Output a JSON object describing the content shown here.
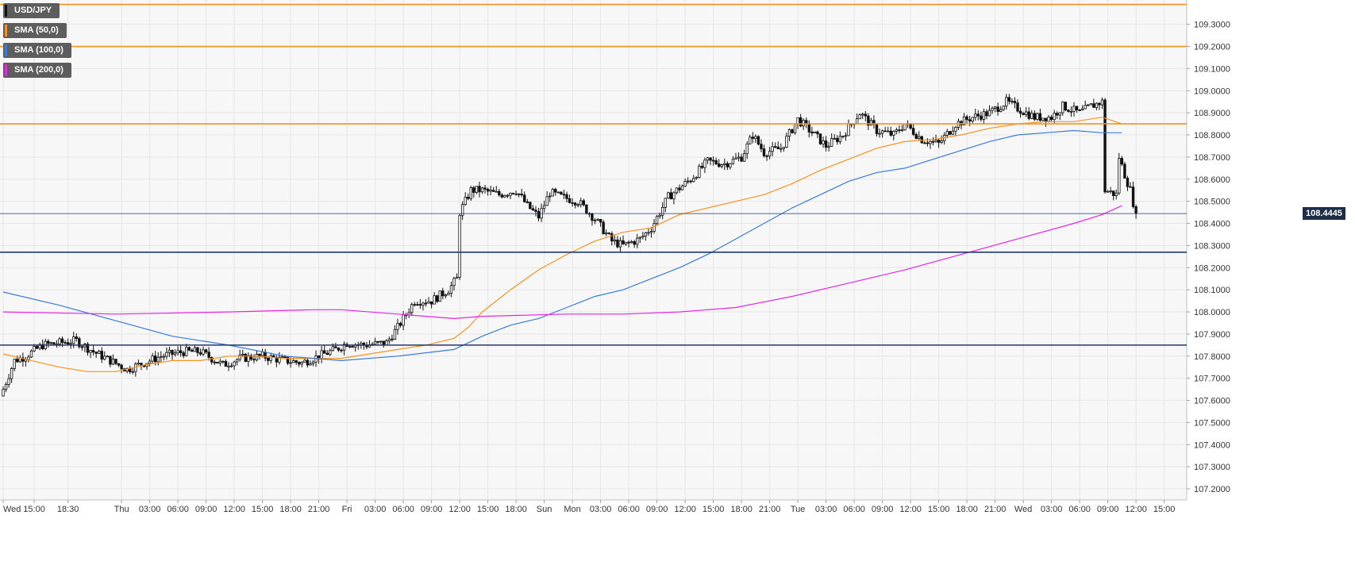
{
  "chart_data": {
    "type": "candlestick",
    "title": "USD/JPY",
    "grid": true,
    "legend_placement": "top-left",
    "ylim": [
      107.15,
      109.41
    ],
    "y_ticks": [
      "109.3000",
      "109.2000",
      "109.1000",
      "109.0000",
      "108.9000",
      "108.8000",
      "108.7000",
      "108.6000",
      "108.5000",
      "108.4000",
      "108.3000",
      "108.2000",
      "108.1000",
      "108.0000",
      "107.9000",
      "107.8000",
      "107.7000",
      "107.6000",
      "107.5000",
      "107.4000",
      "107.3000",
      "107.2000"
    ],
    "x_ticks": [
      {
        "label": "Wed",
        "bar": 0
      },
      {
        "label": "15:00",
        "bar": 11
      },
      {
        "label": "18:30",
        "bar": 23
      },
      {
        "label": "Thu",
        "bar": 42
      },
      {
        "label": "03:00",
        "bar": 52
      },
      {
        "label": "06:00",
        "bar": 62
      },
      {
        "label": "09:00",
        "bar": 72
      },
      {
        "label": "12:00",
        "bar": 82
      },
      {
        "label": "15:00",
        "bar": 92
      },
      {
        "label": "18:00",
        "bar": 102
      },
      {
        "label": "21:00",
        "bar": 112
      },
      {
        "label": "Fri",
        "bar": 122
      },
      {
        "label": "03:00",
        "bar": 132
      },
      {
        "label": "06:00",
        "bar": 142
      },
      {
        "label": "09:00",
        "bar": 152
      },
      {
        "label": "12:00",
        "bar": 162
      },
      {
        "label": "15:00",
        "bar": 172
      },
      {
        "label": "18:00",
        "bar": 182
      },
      {
        "label": "Sun",
        "bar": 192
      },
      {
        "label": "Mon",
        "bar": 202
      },
      {
        "label": "03:00",
        "bar": 212
      },
      {
        "label": "06:00",
        "bar": 222
      },
      {
        "label": "09:00",
        "bar": 232
      },
      {
        "label": "12:00",
        "bar": 242
      },
      {
        "label": "15:00",
        "bar": 252
      },
      {
        "label": "18:00",
        "bar": 262
      },
      {
        "label": "21:00",
        "bar": 272
      },
      {
        "label": "Tue",
        "bar": 282
      },
      {
        "label": "03:00",
        "bar": 292
      },
      {
        "label": "06:00",
        "bar": 302
      },
      {
        "label": "09:00",
        "bar": 312
      },
      {
        "label": "12:00",
        "bar": 322
      },
      {
        "label": "15:00",
        "bar": 332
      },
      {
        "label": "18:00",
        "bar": 342
      },
      {
        "label": "21:00",
        "bar": 352
      },
      {
        "label": "Wed",
        "bar": 362
      },
      {
        "label": "03:00",
        "bar": 372
      },
      {
        "label": "06:00",
        "bar": 382
      },
      {
        "label": "09:00",
        "bar": 392
      },
      {
        "label": "12:00",
        "bar": 402
      },
      {
        "label": "15:00",
        "bar": 412
      }
    ],
    "bar_count": 415,
    "last_price": "108.4445",
    "last_price_value": 108.4445,
    "anchors": [
      [
        0,
        107.65
      ],
      [
        4,
        107.78
      ],
      [
        8,
        107.8
      ],
      [
        14,
        107.85
      ],
      [
        20,
        107.86
      ],
      [
        26,
        107.87
      ],
      [
        32,
        107.82
      ],
      [
        38,
        107.78
      ],
      [
        44,
        107.74
      ],
      [
        50,
        107.77
      ],
      [
        56,
        107.8
      ],
      [
        64,
        107.82
      ],
      [
        70,
        107.82
      ],
      [
        74,
        107.79
      ],
      [
        78,
        107.76
      ],
      [
        84,
        107.79
      ],
      [
        92,
        107.8
      ],
      [
        100,
        107.78
      ],
      [
        106,
        107.77
      ],
      [
        112,
        107.8
      ],
      [
        118,
        107.83
      ],
      [
        122,
        107.86
      ],
      [
        128,
        107.85
      ],
      [
        136,
        107.86
      ],
      [
        140,
        107.93
      ],
      [
        146,
        108.05
      ],
      [
        152,
        108.05
      ],
      [
        158,
        108.1
      ],
      [
        161,
        108.15
      ],
      [
        162,
        108.45
      ],
      [
        166,
        108.55
      ],
      [
        170,
        108.55
      ],
      [
        176,
        108.53
      ],
      [
        182,
        108.55
      ],
      [
        186,
        108.48
      ],
      [
        190,
        108.43
      ],
      [
        194,
        108.54
      ],
      [
        198,
        108.52
      ],
      [
        204,
        108.5
      ],
      [
        210,
        108.42
      ],
      [
        216,
        108.32
      ],
      [
        220,
        108.3
      ],
      [
        226,
        108.33
      ],
      [
        230,
        108.38
      ],
      [
        236,
        108.52
      ],
      [
        244,
        108.6
      ],
      [
        250,
        108.68
      ],
      [
        256,
        108.67
      ],
      [
        262,
        108.7
      ],
      [
        266,
        108.8
      ],
      [
        270,
        108.72
      ],
      [
        276,
        108.74
      ],
      [
        282,
        108.87
      ],
      [
        288,
        108.8
      ],
      [
        292,
        108.75
      ],
      [
        298,
        108.8
      ],
      [
        304,
        108.9
      ],
      [
        310,
        108.82
      ],
      [
        316,
        108.8
      ],
      [
        320,
        108.85
      ],
      [
        326,
        108.78
      ],
      [
        332,
        108.76
      ],
      [
        338,
        108.85
      ],
      [
        344,
        108.88
      ],
      [
        350,
        108.9
      ],
      [
        356,
        108.95
      ],
      [
        360,
        108.92
      ],
      [
        366,
        108.88
      ],
      [
        372,
        108.88
      ],
      [
        376,
        108.93
      ],
      [
        382,
        108.9
      ],
      [
        386,
        108.93
      ],
      [
        390,
        108.95
      ],
      [
        391,
        108.55
      ],
      [
        395,
        108.53
      ],
      [
        396,
        108.7
      ],
      [
        398,
        108.62
      ],
      [
        400,
        108.55
      ],
      [
        402,
        108.44
      ]
    ],
    "series": [
      {
        "name": "USD/JPY",
        "color": "#111111"
      },
      {
        "name": "SMA (50,0)",
        "color": "#f5921f",
        "points": [
          [
            0,
            107.81
          ],
          [
            10,
            107.78
          ],
          [
            20,
            107.75
          ],
          [
            30,
            107.73
          ],
          [
            40,
            107.73
          ],
          [
            50,
            107.76
          ],
          [
            60,
            107.78
          ],
          [
            70,
            107.78
          ],
          [
            80,
            107.8
          ],
          [
            90,
            107.8
          ],
          [
            100,
            107.79
          ],
          [
            110,
            107.79
          ],
          [
            120,
            107.79
          ],
          [
            130,
            107.81
          ],
          [
            140,
            107.83
          ],
          [
            150,
            107.85
          ],
          [
            160,
            107.88
          ],
          [
            165,
            107.93
          ],
          [
            170,
            108.0
          ],
          [
            180,
            108.1
          ],
          [
            190,
            108.19
          ],
          [
            200,
            108.26
          ],
          [
            210,
            108.32
          ],
          [
            220,
            108.36
          ],
          [
            230,
            108.38
          ],
          [
            240,
            108.44
          ],
          [
            250,
            108.47
          ],
          [
            260,
            108.5
          ],
          [
            270,
            108.53
          ],
          [
            280,
            108.58
          ],
          [
            290,
            108.64
          ],
          [
            300,
            108.69
          ],
          [
            310,
            108.74
          ],
          [
            320,
            108.77
          ],
          [
            330,
            108.78
          ],
          [
            340,
            108.8
          ],
          [
            350,
            108.83
          ],
          [
            360,
            108.85
          ],
          [
            370,
            108.86
          ],
          [
            380,
            108.86
          ],
          [
            390,
            108.88
          ],
          [
            397,
            108.85
          ]
        ]
      },
      {
        "name": "SMA (100,0)",
        "color": "#3a7bd5",
        "points": [
          [
            0,
            108.09
          ],
          [
            20,
            108.03
          ],
          [
            40,
            107.96
          ],
          [
            60,
            107.89
          ],
          [
            80,
            107.85
          ],
          [
            100,
            107.8
          ],
          [
            120,
            107.78
          ],
          [
            140,
            107.8
          ],
          [
            160,
            107.83
          ],
          [
            170,
            107.89
          ],
          [
            180,
            107.94
          ],
          [
            190,
            107.97
          ],
          [
            200,
            108.02
          ],
          [
            210,
            108.07
          ],
          [
            220,
            108.1
          ],
          [
            230,
            108.15
          ],
          [
            240,
            108.2
          ],
          [
            250,
            108.26
          ],
          [
            260,
            108.33
          ],
          [
            270,
            108.4
          ],
          [
            280,
            108.47
          ],
          [
            290,
            108.53
          ],
          [
            300,
            108.59
          ],
          [
            310,
            108.63
          ],
          [
            320,
            108.65
          ],
          [
            330,
            108.69
          ],
          [
            340,
            108.73
          ],
          [
            350,
            108.77
          ],
          [
            360,
            108.8
          ],
          [
            370,
            108.81
          ],
          [
            380,
            108.82
          ],
          [
            390,
            108.81
          ],
          [
            397,
            108.81
          ]
        ]
      },
      {
        "name": "SMA (200,0)",
        "color": "#e625e6",
        "points": [
          [
            0,
            108.0
          ],
          [
            40,
            107.99
          ],
          [
            80,
            108.0
          ],
          [
            110,
            108.01
          ],
          [
            120,
            108.01
          ],
          [
            140,
            107.99
          ],
          [
            160,
            107.97
          ],
          [
            170,
            107.98
          ],
          [
            200,
            107.99
          ],
          [
            220,
            107.99
          ],
          [
            240,
            108.0
          ],
          [
            260,
            108.02
          ],
          [
            280,
            108.07
          ],
          [
            300,
            108.13
          ],
          [
            320,
            108.19
          ],
          [
            340,
            108.26
          ],
          [
            360,
            108.33
          ],
          [
            380,
            108.4
          ],
          [
            390,
            108.44
          ],
          [
            397,
            108.48
          ]
        ]
      }
    ],
    "horizontal_levels": [
      {
        "value": 109.39,
        "color": "#f5921f"
      },
      {
        "value": 109.2,
        "color": "#f5921f"
      },
      {
        "value": 108.85,
        "color": "#f5921f"
      },
      {
        "value": 108.4445,
        "color": "#1f3a6b",
        "thin": true
      },
      {
        "value": 108.27,
        "color": "#1f3a6b"
      },
      {
        "value": 107.85,
        "color": "#1f3a6b"
      }
    ]
  },
  "legend": [
    {
      "label": "USD/JPY",
      "color": "#111111"
    },
    {
      "label": "SMA (50,0)",
      "color": "#f5921f"
    },
    {
      "label": "SMA (100,0)",
      "color": "#3a7bd5"
    },
    {
      "label": "SMA (200,0)",
      "color": "#e625e6"
    }
  ]
}
